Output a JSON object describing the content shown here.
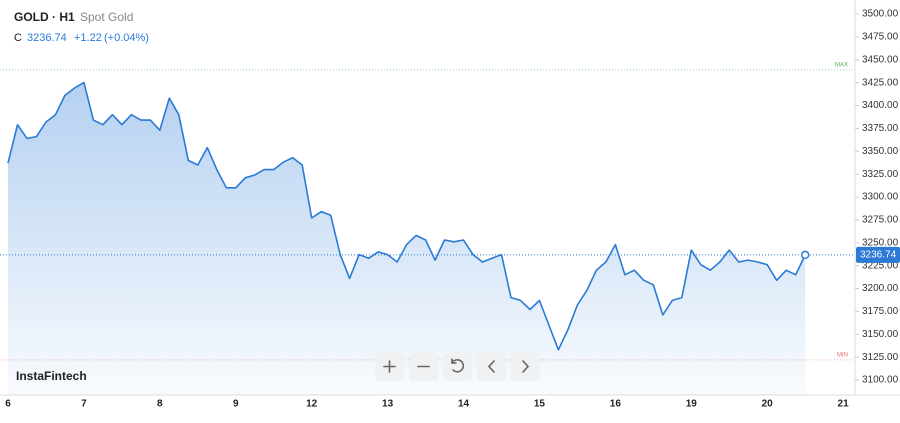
{
  "header": {
    "symbol": "GOLD · H1",
    "name": "Spot Gold",
    "close_label": "C",
    "change": "+1.22",
    "change_pct": "(+0.04%)"
  },
  "brand": "InstaFintech",
  "chart_data": {
    "type": "line",
    "categories": [
      "6",
      null,
      null,
      null,
      null,
      null,
      null,
      null,
      "7",
      null,
      null,
      null,
      null,
      null,
      null,
      null,
      "8",
      null,
      null,
      null,
      null,
      null,
      null,
      null,
      "9",
      null,
      null,
      null,
      null,
      null,
      null,
      null,
      "12",
      null,
      null,
      null,
      null,
      null,
      null,
      null,
      "13",
      null,
      null,
      null,
      null,
      null,
      null,
      null,
      "14",
      null,
      null,
      null,
      null,
      null,
      null,
      null,
      "15",
      null,
      null,
      null,
      null,
      null,
      null,
      null,
      "16",
      null,
      null,
      null,
      null,
      null,
      null,
      null,
      "19",
      null,
      null,
      null,
      null,
      null,
      null,
      null,
      "20",
      null,
      null,
      null,
      null,
      null,
      null,
      null,
      "21"
    ],
    "series": [
      {
        "name": "Spot Gold",
        "color": "#2a7ad6",
        "values": [
          3337,
          3379,
          3364,
          3366,
          3382,
          3390,
          3411,
          3419,
          3425,
          3384,
          3379,
          3390,
          3379,
          3390,
          3384,
          3384,
          3373,
          3408,
          3390,
          3340,
          3335,
          3354,
          3330,
          3310,
          3310,
          3321,
          3324,
          3330,
          3330,
          3338,
          3343,
          3335,
          3277,
          3284,
          3280,
          3237,
          3211,
          3237,
          3233,
          3240,
          3237,
          3229,
          3248,
          3258,
          3253,
          3231,
          3253,
          3251,
          3253,
          3237,
          3229,
          3233,
          3237,
          3190,
          3187,
          3177,
          3187,
          3160,
          3133,
          3155,
          3182,
          3198,
          3220,
          3229,
          3248,
          3215,
          3220,
          3209,
          3204,
          3171,
          3187,
          3190,
          3242,
          3226,
          3220,
          3229,
          3242,
          3229,
          3231,
          3229,
          3226,
          3209,
          3220,
          3215,
          3236.74,
          null,
          null,
          null,
          null
        ]
      }
    ],
    "ylim": [
      3100,
      3500
    ],
    "yticks": [
      {
        "value": 3100,
        "label": "3100.00"
      },
      {
        "value": 3125,
        "label": "3125.00"
      },
      {
        "value": 3150,
        "label": "3150.00"
      },
      {
        "value": 3175,
        "label": "3175.00"
      },
      {
        "value": 3200,
        "label": "3200.00"
      },
      {
        "value": 3225,
        "label": "3225.00"
      },
      {
        "value": 3250,
        "label": "3250.00"
      },
      {
        "value": 3275,
        "label": "3275.00"
      },
      {
        "value": 3300,
        "label": "3300.00"
      },
      {
        "value": 3325,
        "label": "3325.00"
      },
      {
        "value": 3350,
        "label": "3350.00"
      },
      {
        "value": 3375,
        "label": "3375.00"
      },
      {
        "value": 3400,
        "label": "3400.00"
      },
      {
        "value": 3425,
        "label": "3425.00"
      },
      {
        "value": 3450,
        "label": "3450.00"
      },
      {
        "value": 3475,
        "label": "3475.00"
      },
      {
        "value": 3500,
        "label": "3500.00"
      }
    ],
    "grid": false,
    "reference_lines": [
      {
        "label": "MAX",
        "value": 3439,
        "color": "#4caf50"
      },
      {
        "label": "MIN",
        "value": 3122,
        "color": "#e57373"
      }
    ]
  }
}
